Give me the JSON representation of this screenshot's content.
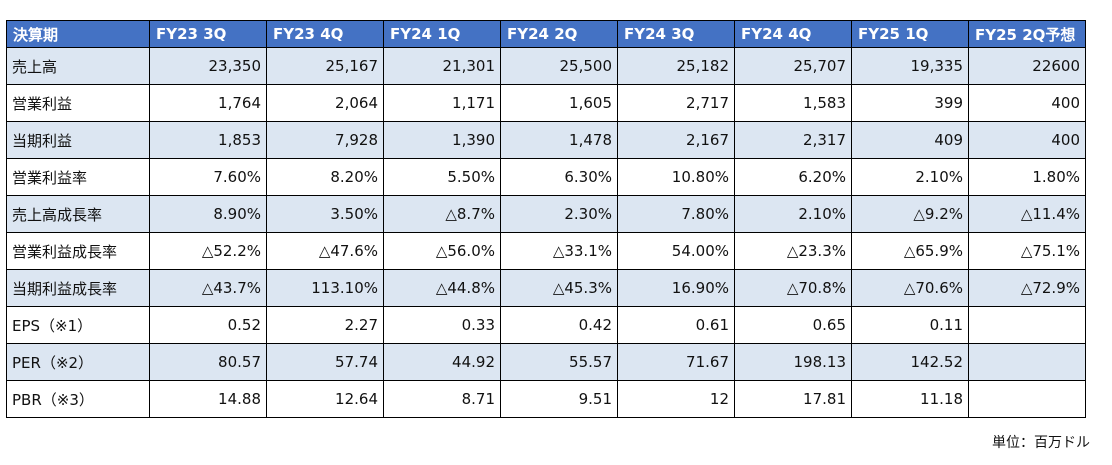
{
  "table": {
    "headers": [
      "決算期",
      "FY23 3Q",
      "FY23 4Q",
      "FY24 1Q",
      "FY24 2Q",
      "FY24 3Q",
      "FY24 4Q",
      "FY25 1Q",
      "FY25 2Q予想"
    ],
    "rows": [
      {
        "label": "売上高",
        "values": [
          "23,350",
          "25,167",
          "21,301",
          "25,500",
          "25,182",
          "25,707",
          "19,335",
          "22600"
        ]
      },
      {
        "label": "営業利益",
        "values": [
          "1,764",
          "2,064",
          "1,171",
          "1,605",
          "2,717",
          "1,583",
          "399",
          "400"
        ]
      },
      {
        "label": "当期利益",
        "values": [
          "1,853",
          "7,928",
          "1,390",
          "1,478",
          "2,167",
          "2,317",
          "409",
          "400"
        ]
      },
      {
        "label": "営業利益率",
        "values": [
          "7.60%",
          "8.20%",
          "5.50%",
          "6.30%",
          "10.80%",
          "6.20%",
          "2.10%",
          "1.80%"
        ]
      },
      {
        "label": "売上高成長率",
        "values": [
          "8.90%",
          "3.50%",
          "△8.7%",
          "2.30%",
          "7.80%",
          "2.10%",
          "△9.2%",
          "△11.4%"
        ]
      },
      {
        "label": "営業利益成長率",
        "values": [
          "△52.2%",
          "△47.6%",
          "△56.0%",
          "△33.1%",
          "54.00%",
          "△23.3%",
          "△65.9%",
          "△75.1%"
        ]
      },
      {
        "label": "当期利益成長率",
        "values": [
          "△43.7%",
          "113.10%",
          "△44.8%",
          "△45.3%",
          "16.90%",
          "△70.8%",
          "△70.6%",
          "△72.9%"
        ]
      },
      {
        "label": "EPS（※1）",
        "values": [
          "0.52",
          "2.27",
          "0.33",
          "0.42",
          "0.61",
          "0.65",
          "0.11",
          ""
        ]
      },
      {
        "label": "PER（※2）",
        "values": [
          "80.57",
          "57.74",
          "44.92",
          "55.57",
          "71.67",
          "198.13",
          "142.52",
          ""
        ]
      },
      {
        "label": "PBR（※3）",
        "values": [
          "14.88",
          "12.64",
          "8.71",
          "9.51",
          "12",
          "17.81",
          "11.18",
          ""
        ]
      }
    ]
  },
  "unit_note": "単位：百万ドル",
  "colors": {
    "header_bg": "#4472c4",
    "band_bg": "#dce6f2",
    "border": "#000000"
  }
}
